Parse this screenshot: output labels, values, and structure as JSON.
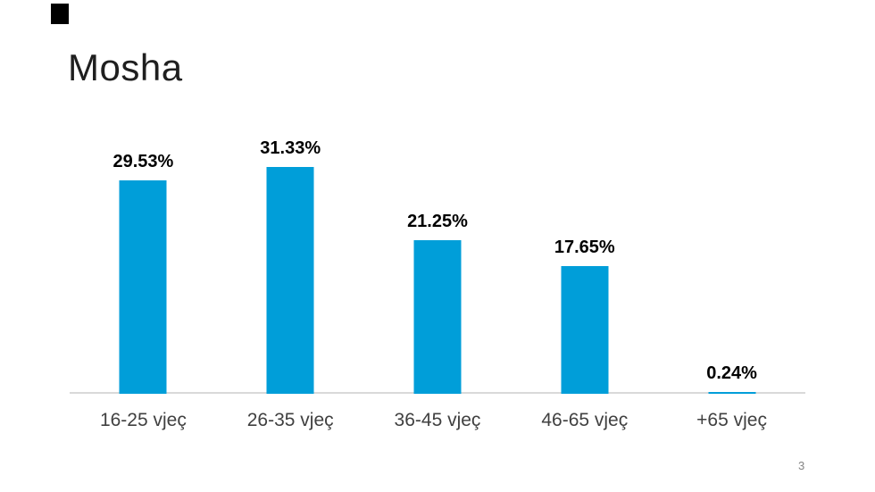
{
  "slide": {
    "title": "Mosha",
    "page_number": "3",
    "decor": {
      "corner_square_color": "#000000"
    }
  },
  "chart_data": {
    "type": "bar",
    "title": "Mosha",
    "categories": [
      "16-25 vjeç",
      "26-35 vjeç",
      "36-45 vjeç",
      "46-65 vjeç",
      "+65 vjeç"
    ],
    "values": [
      29.53,
      31.33,
      21.25,
      17.65,
      0.24
    ],
    "data_labels": [
      "29.53%",
      "31.33%",
      "21.25%",
      "17.65%",
      "0.24%"
    ],
    "xlabel": "",
    "ylabel": "",
    "ylim": [
      0,
      35
    ],
    "grid": false,
    "legend_position": "none",
    "colors": {
      "bar_fill": "#009ED9",
      "axis_line": "#D9D9D9",
      "data_label": "#000000",
      "category_label": "#404040"
    }
  }
}
